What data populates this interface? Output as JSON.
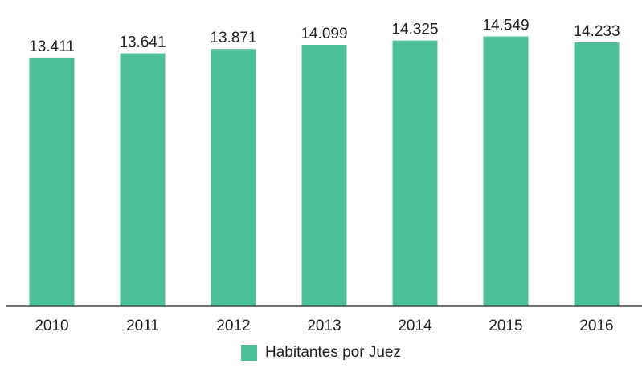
{
  "chart_data": {
    "type": "bar",
    "categories": [
      "2010",
      "2011",
      "2012",
      "2013",
      "2014",
      "2015",
      "2016"
    ],
    "series": [
      {
        "name": "Habitantes por Juez",
        "values": [
          13411,
          13641,
          13871,
          14099,
          14325,
          14549,
          14233
        ],
        "labels": [
          "13.411",
          "13.641",
          "13.871",
          "14.099",
          "14.325",
          "14.549",
          "14.233"
        ]
      }
    ],
    "ylim": [
      0,
      15000
    ],
    "grid": false,
    "legend": "bottom-center",
    "bar_color": "#4dbf97"
  }
}
